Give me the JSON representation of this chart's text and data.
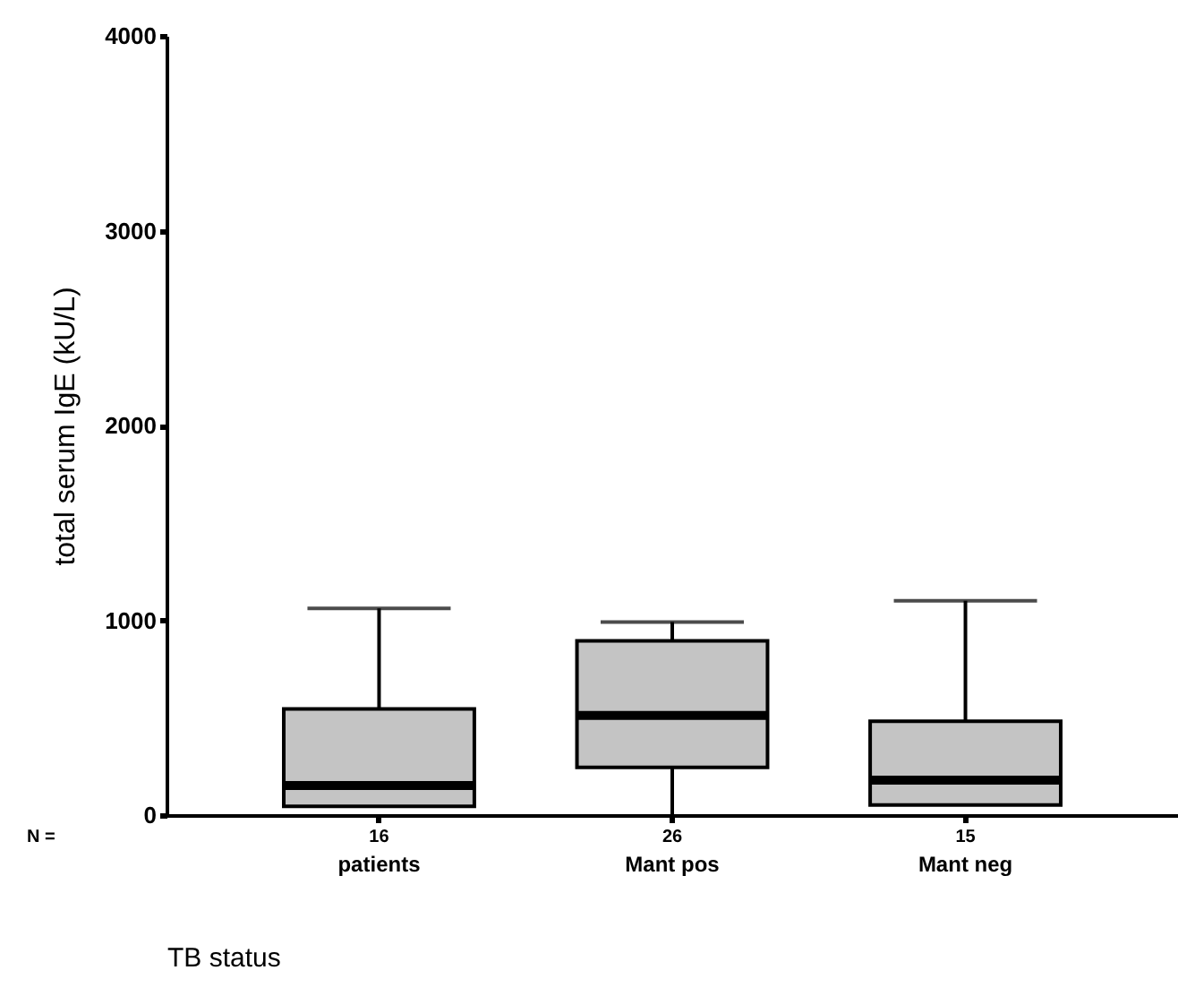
{
  "chart_data": {
    "type": "box",
    "categories": [
      "patients",
      "Mant pos",
      "Mant neg"
    ],
    "xlabel": "TB status",
    "ylabel": "total serum IgE (kU/L)",
    "ylim": [
      0,
      4000
    ],
    "yticks": [
      0,
      1000,
      2000,
      3000,
      4000
    ],
    "grid": false,
    "series": [
      {
        "color": "#c4c4c4",
        "boxes": [
          {
            "low": 45,
            "q1": 45,
            "median": 152,
            "q3": 545,
            "high": 1061
          },
          {
            "low": 0,
            "q1": 245,
            "median": 512,
            "q3": 894,
            "high": 991
          },
          {
            "low": 52,
            "q1": 52,
            "median": 179,
            "q3": 482,
            "high": 1100
          }
        ]
      }
    ],
    "annotations": [
      "N =",
      "16",
      "26",
      "15"
    ]
  }
}
